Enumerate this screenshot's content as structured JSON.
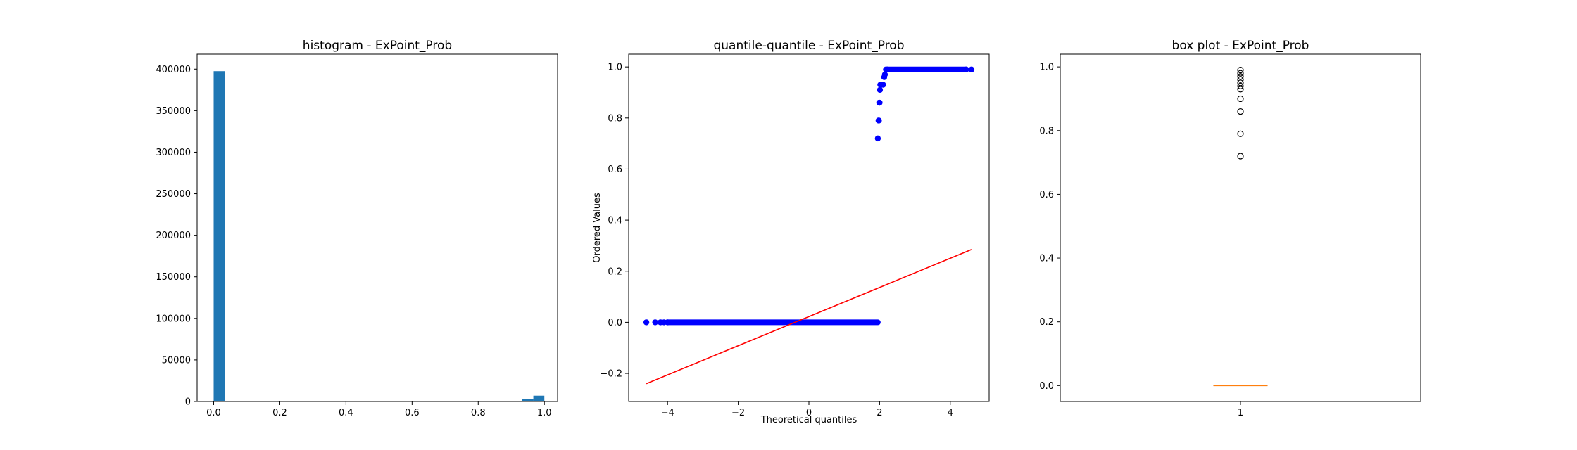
{
  "chart_data": [
    {
      "type": "bar",
      "title": "histogram - ExPoint_Prob",
      "xlabel": "",
      "ylabel": "",
      "xlim": [
        -0.05,
        1.04
      ],
      "ylim": [
        0,
        418000
      ],
      "xticks": [
        0.0,
        0.2,
        0.4,
        0.6,
        0.8,
        1.0
      ],
      "xtick_labels": [
        "0.0",
        "0.2",
        "0.4",
        "0.6",
        "0.8",
        "1.0"
      ],
      "yticks": [
        0,
        50000,
        100000,
        150000,
        200000,
        250000,
        300000,
        350000,
        400000
      ],
      "ytick_labels": [
        "0",
        "50000",
        "100000",
        "150000",
        "200000",
        "250000",
        "300000",
        "350000",
        "400000"
      ],
      "bins": [
        {
          "x0": 0.0,
          "x1": 0.0333,
          "value": 397500
        },
        {
          "x0": 0.9333,
          "x1": 0.9667,
          "value": 3000
        },
        {
          "x0": 0.9667,
          "x1": 1.0,
          "value": 7000
        }
      ],
      "color": "#1f77b4",
      "grid": false
    },
    {
      "type": "scatter",
      "title": "quantile-quantile - ExPoint_Prob",
      "xlabel": "Theoretical quantiles",
      "ylabel": "Ordered Values",
      "xlim": [
        -5.1,
        5.1
      ],
      "ylim": [
        -0.31,
        1.05
      ],
      "xticks": [
        -4,
        -2,
        0,
        2,
        4
      ],
      "xtick_labels": [
        "−4",
        "−2",
        "0",
        "2",
        "4"
      ],
      "yticks": [
        -0.2,
        0.0,
        0.2,
        0.4,
        0.6,
        0.8,
        1.0
      ],
      "ytick_labels": [
        "−0.2",
        "0.0",
        "0.2",
        "0.4",
        "0.6",
        "0.8",
        "1.0"
      ],
      "points": [
        [
          -4.6,
          0.0
        ],
        [
          -4.35,
          0.0
        ],
        [
          -4.2,
          0.0
        ],
        [
          -4.1,
          0.0
        ],
        [
          -4.0,
          0.0
        ],
        [
          1.95,
          0.72
        ],
        [
          1.97,
          0.79
        ],
        [
          1.98,
          0.79
        ],
        [
          1.99,
          0.86
        ],
        [
          2.0,
          0.86
        ],
        [
          2.01,
          0.91
        ],
        [
          2.02,
          0.93
        ],
        [
          2.05,
          0.93
        ],
        [
          2.1,
          0.93
        ],
        [
          2.13,
          0.96
        ],
        [
          2.15,
          0.97
        ],
        [
          2.18,
          0.99
        ],
        [
          2.22,
          0.99
        ],
        [
          4.45,
          0.99
        ],
        [
          4.6,
          0.99
        ]
      ],
      "segments": [
        {
          "x0": -4.0,
          "x1": 1.95,
          "y": 0.0
        },
        {
          "x0": 2.22,
          "x1": 4.45,
          "y": 0.99
        }
      ],
      "fit_line": {
        "x": [
          -4.6,
          4.6
        ],
        "y": [
          -0.24,
          0.285
        ]
      },
      "point_color": "#0000ff",
      "line_color": "#ff0000",
      "grid": false
    },
    {
      "type": "box",
      "title": "box plot - ExPoint_Prob",
      "xlabel": "",
      "ylabel": "",
      "categories": [
        "1"
      ],
      "xlim": [
        0.5,
        1.5
      ],
      "ylim": [
        -0.05,
        1.04
      ],
      "yticks": [
        0.0,
        0.2,
        0.4,
        0.6,
        0.8,
        1.0
      ],
      "ytick_labels": [
        "0.0",
        "0.2",
        "0.4",
        "0.6",
        "0.8",
        "1.0"
      ],
      "median": 0.0,
      "q1": 0.0,
      "q3": 0.0,
      "outliers": [
        0.72,
        0.79,
        0.86,
        0.9,
        0.93,
        0.94,
        0.95,
        0.96,
        0.97,
        0.98,
        0.99
      ],
      "median_color": "#ff7f0e",
      "grid": false
    }
  ]
}
